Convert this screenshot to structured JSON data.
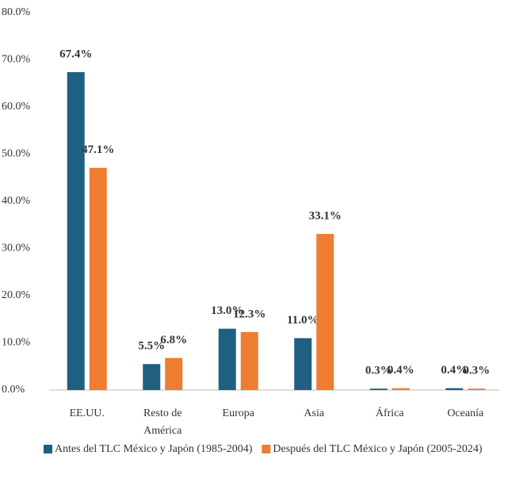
{
  "chart_data": {
    "type": "bar",
    "categories": [
      "EE.UU.",
      "Resto de América",
      "Europa",
      "Asia",
      "África",
      "Oceanía"
    ],
    "series": [
      {
        "name": "Antes del TLC México y Japón (1985-2004)",
        "color": "#1f5f82",
        "values": [
          67.4,
          5.5,
          13.0,
          11.0,
          0.3,
          0.4
        ],
        "value_labels": [
          "67.4%",
          "5.5%",
          "13.0%",
          "11.0%",
          "0.3%",
          "0.4%"
        ]
      },
      {
        "name": "Después del TLC México y Japón (2005-2024)",
        "color": "#ee7d31",
        "values": [
          47.1,
          6.8,
          12.3,
          33.1,
          0.4,
          0.3
        ],
        "value_labels": [
          "47.1%",
          "6.8%",
          "12.3%",
          "33.1%",
          "0.4%",
          "0.3%"
        ]
      }
    ],
    "ylim": [
      0,
      80
    ],
    "yticks": [
      {
        "value": 0,
        "label": "0.0%"
      },
      {
        "value": 10,
        "label": "10.0%"
      },
      {
        "value": 20,
        "label": "20.0%"
      },
      {
        "value": 30,
        "label": "30.0%"
      },
      {
        "value": 40,
        "label": "40.0%"
      },
      {
        "value": 50,
        "label": "50.0%"
      },
      {
        "value": 60,
        "label": "60.0%"
      },
      {
        "value": 70,
        "label": "70.0%"
      },
      {
        "value": 80,
        "label": "80.0%"
      }
    ],
    "grid": false,
    "legend": "bottom"
  }
}
